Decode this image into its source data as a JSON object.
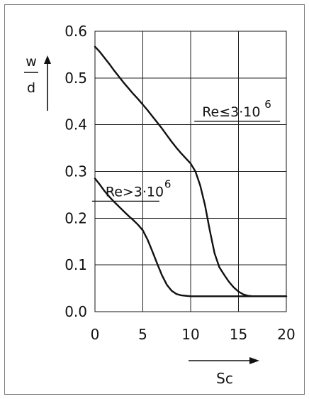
{
  "chart_data": {
    "type": "line",
    "title": "",
    "xlabel": "Sc",
    "ylabel_top": "w",
    "ylabel_bottom": "d",
    "xlim": [
      0,
      20
    ],
    "ylim": [
      0.0,
      0.6
    ],
    "x_ticks": [
      "0",
      "5",
      "10",
      "15",
      "20"
    ],
    "y_ticks": [
      "0.0",
      "0.1",
      "0.2",
      "0.3",
      "0.4",
      "0.5",
      "0.6"
    ],
    "grid": true,
    "series": [
      {
        "name": "Re≤3·10^6",
        "x": [
          0,
          0.5,
          1,
          1.5,
          2,
          2.5,
          3,
          3.5,
          4,
          4.5,
          5,
          5.5,
          6,
          6.5,
          7,
          7.5,
          8,
          8.5,
          9,
          9.5,
          10,
          10.5,
          11,
          11.5,
          12,
          12.5,
          13,
          13.5,
          14,
          14.5,
          15,
          15.5,
          16,
          16.5,
          17,
          18,
          19,
          20
        ],
        "y": [
          0.567,
          0.556,
          0.543,
          0.53,
          0.516,
          0.503,
          0.49,
          0.478,
          0.466,
          0.455,
          0.443,
          0.431,
          0.418,
          0.405,
          0.392,
          0.378,
          0.364,
          0.351,
          0.339,
          0.328,
          0.317,
          0.3,
          0.27,
          0.228,
          0.174,
          0.125,
          0.095,
          0.079,
          0.064,
          0.052,
          0.043,
          0.037,
          0.034,
          0.033,
          0.033,
          0.033,
          0.033,
          0.033
        ]
      },
      {
        "name": "Re>3·10^6",
        "x": [
          0,
          0.5,
          1,
          1.5,
          2,
          2.5,
          3,
          3.5,
          4,
          4.5,
          5,
          5.5,
          6,
          6.5,
          7,
          7.5,
          8,
          8.5,
          9,
          9.5,
          10,
          11,
          12,
          13,
          14,
          15,
          16,
          17,
          18,
          19,
          20
        ],
        "y": [
          0.285,
          0.272,
          0.258,
          0.246,
          0.235,
          0.225,
          0.215,
          0.205,
          0.196,
          0.186,
          0.174,
          0.154,
          0.129,
          0.103,
          0.078,
          0.058,
          0.045,
          0.038,
          0.035,
          0.034,
          0.033,
          0.033,
          0.033,
          0.033,
          0.033,
          0.033,
          0.033,
          0.033,
          0.033,
          0.033,
          0.033
        ]
      }
    ],
    "annotations": [
      {
        "text": "Re≤3·10",
        "sup": "6",
        "x": 11.2,
        "y": 0.418
      },
      {
        "text": "Re>3·10",
        "sup": "6",
        "x": 1.1,
        "y": 0.247
      }
    ]
  }
}
